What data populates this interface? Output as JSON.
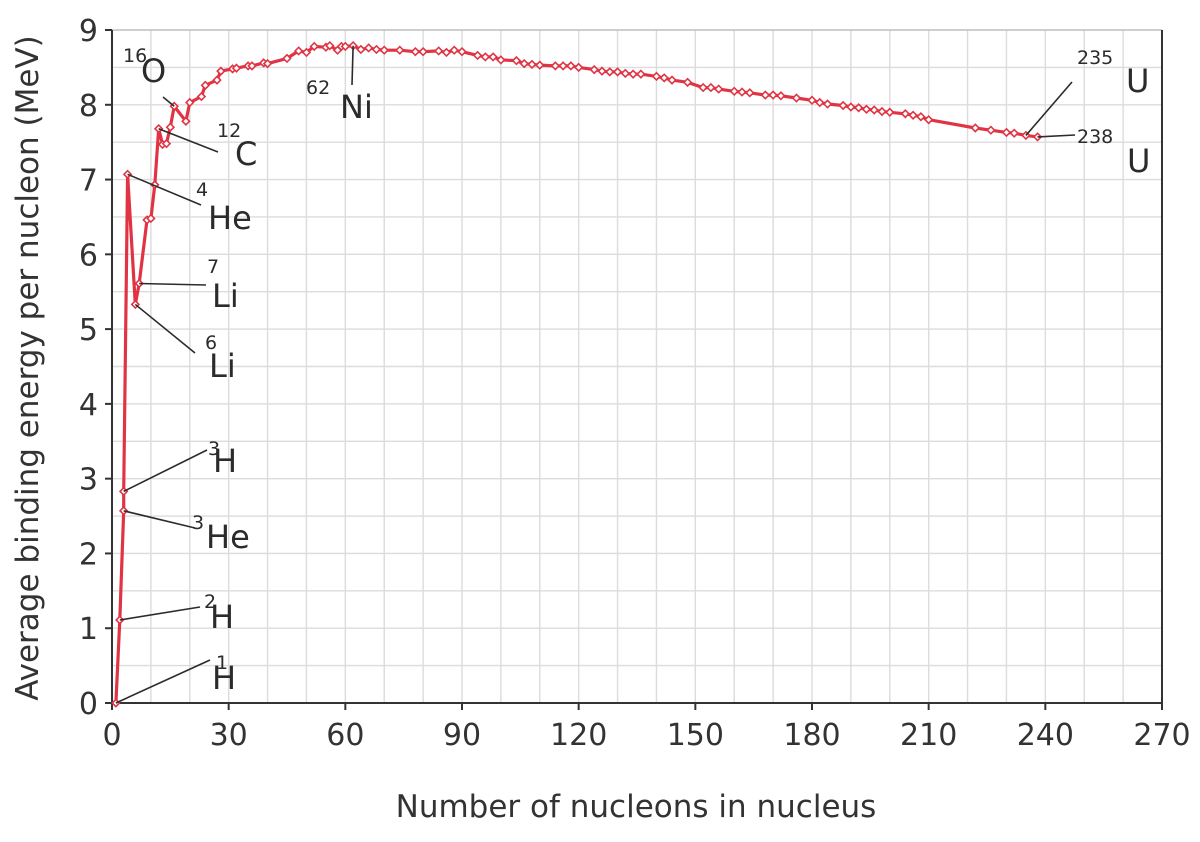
{
  "chart_data": {
    "type": "line",
    "title": "",
    "xlabel": "Number of nucleons in nucleus",
    "ylabel": "Average binding energy per nucleon (MeV)",
    "xlim": [
      0,
      270
    ],
    "ylim": [
      0,
      9
    ],
    "x_ticks": [
      0,
      30,
      60,
      90,
      120,
      150,
      180,
      210,
      240,
      270
    ],
    "y_ticks": [
      0,
      1,
      2,
      3,
      4,
      5,
      6,
      7,
      8,
      9
    ],
    "grid": true,
    "color": "#e03444",
    "series": [
      {
        "x": [
          1,
          2,
          3,
          3,
          4,
          6,
          7,
          9,
          10,
          11,
          12,
          13,
          14,
          15,
          16,
          19,
          20,
          23,
          24,
          27,
          28,
          31,
          32,
          35,
          36,
          39,
          40,
          45,
          48,
          50,
          52,
          55,
          56,
          58,
          59,
          60,
          62,
          64,
          66,
          68,
          70,
          74,
          78,
          80,
          84,
          86,
          88,
          90,
          94,
          96,
          98,
          100,
          104,
          106,
          108,
          110,
          114,
          116,
          118,
          120,
          124,
          126,
          128,
          130,
          132,
          134,
          136,
          140,
          142,
          144,
          148,
          152,
          154,
          156,
          160,
          162,
          164,
          168,
          170,
          172,
          176,
          180,
          182,
          184,
          188,
          190,
          192,
          194,
          196,
          198,
          200,
          204,
          206,
          208,
          210,
          222,
          226,
          230,
          232,
          235,
          238
        ],
        "y": [
          0,
          1.11,
          2.57,
          2.83,
          7.07,
          5.33,
          5.61,
          6.46,
          6.48,
          6.93,
          7.68,
          7.47,
          7.48,
          7.7,
          7.98,
          7.78,
          8.03,
          8.11,
          8.26,
          8.33,
          8.45,
          8.48,
          8.49,
          8.52,
          8.52,
          8.56,
          8.55,
          8.62,
          8.72,
          8.7,
          8.78,
          8.77,
          8.79,
          8.73,
          8.78,
          8.78,
          8.79,
          8.74,
          8.76,
          8.74,
          8.73,
          8.73,
          8.71,
          8.71,
          8.72,
          8.7,
          8.73,
          8.71,
          8.66,
          8.64,
          8.64,
          8.6,
          8.59,
          8.55,
          8.54,
          8.53,
          8.52,
          8.52,
          8.52,
          8.5,
          8.47,
          8.45,
          8.44,
          8.44,
          8.42,
          8.41,
          8.41,
          8.38,
          8.36,
          8.33,
          8.3,
          8.23,
          8.23,
          8.21,
          8.18,
          8.17,
          8.16,
          8.13,
          8.13,
          8.12,
          8.09,
          8.06,
          8.03,
          8.01,
          7.99,
          7.97,
          7.96,
          7.94,
          7.93,
          7.91,
          7.9,
          7.88,
          7.86,
          7.84,
          7.8,
          7.69,
          7.66,
          7.63,
          7.62,
          7.59,
          7.57
        ]
      }
    ],
    "annotations": [
      {
        "sup": "1",
        "main": "H",
        "x": 1,
        "y": 0
      },
      {
        "sup": "2",
        "main": "H",
        "x": 2,
        "y": 1.11
      },
      {
        "sup": "3",
        "main": "He",
        "x": 3,
        "y": 2.57
      },
      {
        "sup": "3",
        "main": "H",
        "x": 3,
        "y": 2.83
      },
      {
        "sup": "6",
        "main": "Li",
        "x": 6,
        "y": 5.33
      },
      {
        "sup": "7",
        "main": "Li",
        "x": 7,
        "y": 5.61
      },
      {
        "sup": "4",
        "main": "He",
        "x": 4,
        "y": 7.07
      },
      {
        "sup": "12",
        "main": "C",
        "x": 12,
        "y": 7.68
      },
      {
        "sup": "16",
        "main": "O",
        "x": 16,
        "y": 7.98
      },
      {
        "sup": "62",
        "main": "Ni",
        "x": 62,
        "y": 8.79
      },
      {
        "sup": "235",
        "main": "U",
        "x": 235,
        "y": 7.59
      },
      {
        "sup": "238",
        "main": "U",
        "x": 238,
        "y": 7.57
      }
    ]
  }
}
